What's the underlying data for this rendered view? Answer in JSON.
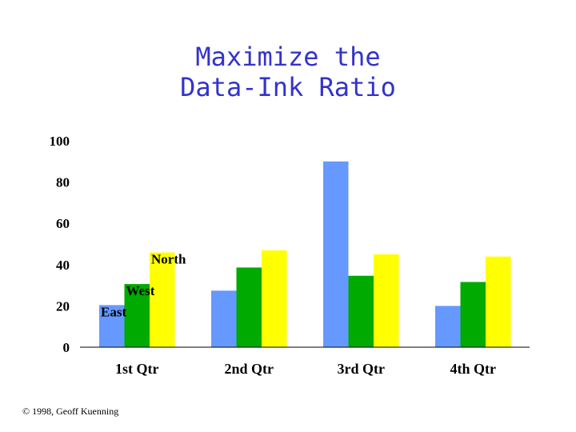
{
  "title_line1": "Maximize the",
  "title_line2": "Data-Ink Ratio",
  "copyright": "© 1998, Geoff Kuenning",
  "chart_data": {
    "type": "bar",
    "categories": [
      "1st Qtr",
      "2nd Qtr",
      "3rd Qtr",
      "4th Qtr"
    ],
    "series": [
      {
        "name": "East",
        "color": "#6699ff",
        "values": [
          20.4,
          27.4,
          90,
          20
        ]
      },
      {
        "name": "West",
        "color": "#00aa00",
        "values": [
          30.6,
          38.6,
          34.6,
          31.6
        ]
      },
      {
        "name": "North",
        "color": "#ffff00",
        "values": [
          45.9,
          46.9,
          45,
          43.9
        ]
      }
    ],
    "yticks": [
      0,
      20,
      40,
      60,
      80,
      100
    ],
    "ylim": [
      0,
      100
    ],
    "grid": false,
    "legend": "none; series names printed next to first-quarter bars"
  }
}
